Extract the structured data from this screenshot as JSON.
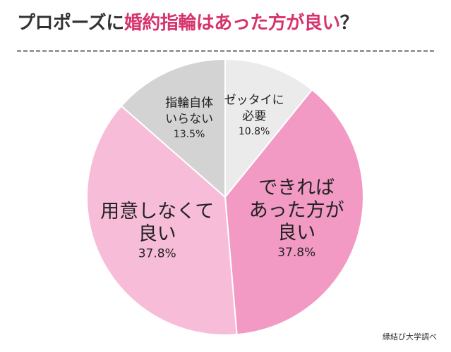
{
  "title": {
    "part1": "プロポーズに",
    "part2": "婚約指輪はあった方が良い",
    "part3": "？"
  },
  "source": "縁結び大学調べ",
  "chart_data": {
    "type": "pie",
    "title": "プロポーズに婚約指輪はあった方が良い？",
    "start_angle_deg": 0,
    "direction": "clockwise",
    "slices": [
      {
        "label": [
          "ゼッタイに",
          "必要"
        ],
        "value": 10.8,
        "pct_label": "10.8%",
        "color": "#ebebeb"
      },
      {
        "label": [
          "できれば",
          "あった方が",
          "良い"
        ],
        "value": 37.8,
        "pct_label": "37.8%",
        "color": "#f29ac4"
      },
      {
        "label": [
          "用意しなくて",
          "良い"
        ],
        "value": 37.8,
        "pct_label": "37.8%",
        "color": "#f7bcd8"
      },
      {
        "label": [
          "指輪自体",
          "いらない"
        ],
        "value": 13.5,
        "pct_label": "13.5%",
        "color": "#d3d3d3"
      }
    ]
  }
}
